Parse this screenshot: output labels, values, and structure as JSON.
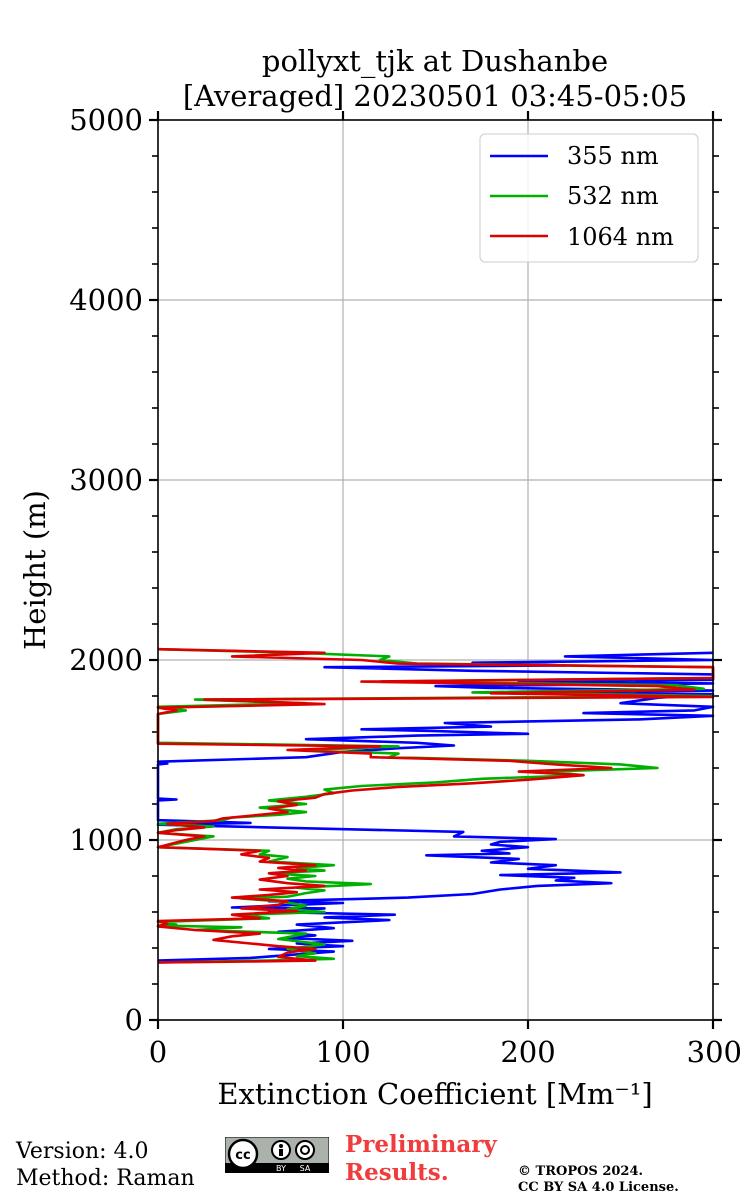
{
  "chart_data": {
    "type": "line",
    "title": [
      "pollyxt_tjk at Dushanbe",
      "[Averaged] 20230501 03:45-05:05"
    ],
    "xlabel": "Extinction Coefficient [Mm⁻¹]",
    "ylabel": "Height (m)",
    "xlim": [
      0,
      300
    ],
    "ylim": [
      0,
      5000
    ],
    "xticks": [
      0,
      100,
      200,
      300
    ],
    "yticks": [
      0,
      1000,
      2000,
      3000,
      4000,
      5000
    ],
    "grid": true,
    "legend_position": "top-right",
    "series": [
      {
        "name": "355 nm",
        "color": "#0000ff",
        "points": [
          [
            0,
            330
          ],
          [
            50,
            345
          ],
          [
            95,
            380
          ],
          [
            60,
            395
          ],
          [
            100,
            410
          ],
          [
            75,
            425
          ],
          [
            105,
            440
          ],
          [
            70,
            455
          ],
          [
            85,
            470
          ],
          [
            65,
            490
          ],
          [
            95,
            510
          ],
          [
            75,
            530
          ],
          [
            125,
            555
          ],
          [
            90,
            570
          ],
          [
            128,
            585
          ],
          [
            60,
            600
          ],
          [
            90,
            620
          ],
          [
            40,
            625
          ],
          [
            75,
            640
          ],
          [
            100,
            650
          ],
          [
            60,
            660
          ],
          [
            135,
            680
          ],
          [
            170,
            700
          ],
          [
            185,
            725
          ],
          [
            205,
            745
          ],
          [
            245,
            760
          ],
          [
            215,
            775
          ],
          [
            225,
            790
          ],
          [
            185,
            805
          ],
          [
            250,
            820
          ],
          [
            200,
            840
          ],
          [
            215,
            860
          ],
          [
            180,
            875
          ],
          [
            195,
            895
          ],
          [
            145,
            915
          ],
          [
            190,
            925
          ],
          [
            175,
            940
          ],
          [
            200,
            960
          ],
          [
            180,
            975
          ],
          [
            185,
            990
          ],
          [
            215,
            1005
          ],
          [
            160,
            1020
          ],
          [
            165,
            1045
          ],
          [
            60,
            1070
          ],
          [
            0,
            1085
          ],
          [
            50,
            1095
          ],
          [
            0,
            1110
          ],
          [
            0,
            1220
          ],
          [
            10,
            1225
          ],
          [
            0,
            1230
          ],
          [
            0,
            1420
          ],
          [
            5,
            1425
          ],
          [
            0,
            1435
          ],
          [
            80,
            1460
          ],
          [
            100,
            1490
          ],
          [
            130,
            1510
          ],
          [
            160,
            1525
          ],
          [
            140,
            1540
          ],
          [
            80,
            1560
          ],
          [
            140,
            1580
          ],
          [
            200,
            1590
          ],
          [
            150,
            1605
          ],
          [
            110,
            1615
          ],
          [
            180,
            1630
          ],
          [
            155,
            1650
          ],
          [
            260,
            1670
          ],
          [
            300,
            1690
          ],
          [
            230,
            1705
          ],
          [
            290,
            1720
          ],
          [
            300,
            1740
          ],
          [
            250,
            1760
          ],
          [
            270,
            1790
          ],
          [
            300,
            1810
          ],
          [
            200,
            1820
          ],
          [
            300,
            1830
          ],
          [
            180,
            1845
          ],
          [
            150,
            1855
          ],
          [
            300,
            1870
          ],
          [
            195,
            1880
          ],
          [
            300,
            1890
          ],
          [
            300,
            1920
          ],
          [
            170,
            1940
          ],
          [
            90,
            1960
          ],
          [
            220,
            1970
          ],
          [
            170,
            1985
          ],
          [
            300,
            2000
          ],
          [
            220,
            2020
          ],
          [
            300,
            2040
          ]
        ]
      },
      {
        "name": "532 nm",
        "color": "#00b000",
        "points": [
          [
            0,
            320
          ],
          [
            60,
            330
          ],
          [
            95,
            340
          ],
          [
            75,
            355
          ],
          [
            85,
            370
          ],
          [
            70,
            395
          ],
          [
            90,
            420
          ],
          [
            65,
            450
          ],
          [
            80,
            480
          ],
          [
            20,
            500
          ],
          [
            45,
            515
          ],
          [
            0,
            525
          ],
          [
            10,
            530
          ],
          [
            0,
            545
          ],
          [
            60,
            565
          ],
          [
            45,
            585
          ],
          [
            90,
            600
          ],
          [
            70,
            615
          ],
          [
            80,
            635
          ],
          [
            65,
            660
          ],
          [
            45,
            675
          ],
          [
            70,
            685
          ],
          [
            80,
            705
          ],
          [
            90,
            720
          ],
          [
            75,
            735
          ],
          [
            115,
            755
          ],
          [
            80,
            770
          ],
          [
            70,
            785
          ],
          [
            85,
            800
          ],
          [
            60,
            815
          ],
          [
            90,
            830
          ],
          [
            75,
            845
          ],
          [
            95,
            860
          ],
          [
            60,
            880
          ],
          [
            70,
            905
          ],
          [
            55,
            920
          ],
          [
            60,
            940
          ],
          [
            0,
            960
          ],
          [
            20,
            1000
          ],
          [
            30,
            1020
          ],
          [
            0,
            1040
          ],
          [
            10,
            1060
          ],
          [
            30,
            1075
          ],
          [
            0,
            1090
          ],
          [
            35,
            1110
          ],
          [
            40,
            1125
          ],
          [
            65,
            1140
          ],
          [
            80,
            1155
          ],
          [
            55,
            1180
          ],
          [
            80,
            1200
          ],
          [
            60,
            1220
          ],
          [
            80,
            1240
          ],
          [
            95,
            1260
          ],
          [
            90,
            1280
          ],
          [
            110,
            1300
          ],
          [
            150,
            1320
          ],
          [
            175,
            1340
          ],
          [
            230,
            1360
          ],
          [
            210,
            1380
          ],
          [
            270,
            1400
          ],
          [
            250,
            1420
          ],
          [
            200,
            1440
          ],
          [
            125,
            1460
          ],
          [
            130,
            1480
          ],
          [
            80,
            1500
          ],
          [
            130,
            1520
          ],
          [
            0,
            1540
          ],
          [
            0,
            1700
          ],
          [
            15,
            1720
          ],
          [
            0,
            1740
          ],
          [
            80,
            1760
          ],
          [
            20,
            1780
          ],
          [
            300,
            1800
          ],
          [
            170,
            1820
          ],
          [
            295,
            1840
          ],
          [
            280,
            1860
          ],
          [
            120,
            1880
          ],
          [
            300,
            1900
          ],
          [
            300,
            1940
          ],
          [
            300,
            1960
          ],
          [
            140,
            1980
          ],
          [
            120,
            2000
          ],
          [
            125,
            2020
          ],
          [
            75,
            2040
          ],
          [
            0,
            2060
          ]
        ]
      },
      {
        "name": "1064 nm",
        "color": "#dd0000",
        "points": [
          [
            0,
            320
          ],
          [
            50,
            325
          ],
          [
            85,
            330
          ],
          [
            65,
            350
          ],
          [
            70,
            375
          ],
          [
            85,
            395
          ],
          [
            65,
            410
          ],
          [
            50,
            425
          ],
          [
            30,
            445
          ],
          [
            40,
            465
          ],
          [
            55,
            480
          ],
          [
            20,
            500
          ],
          [
            0,
            520
          ],
          [
            5,
            535
          ],
          [
            0,
            550
          ],
          [
            55,
            565
          ],
          [
            40,
            585
          ],
          [
            75,
            605
          ],
          [
            45,
            620
          ],
          [
            65,
            640
          ],
          [
            70,
            660
          ],
          [
            40,
            680
          ],
          [
            60,
            695
          ],
          [
            75,
            710
          ],
          [
            55,
            725
          ],
          [
            90,
            745
          ],
          [
            70,
            760
          ],
          [
            55,
            780
          ],
          [
            70,
            800
          ],
          [
            60,
            815
          ],
          [
            80,
            830
          ],
          [
            65,
            845
          ],
          [
            85,
            860
          ],
          [
            55,
            880
          ],
          [
            60,
            900
          ],
          [
            45,
            920
          ],
          [
            55,
            940
          ],
          [
            0,
            960
          ],
          [
            15,
            1000
          ],
          [
            25,
            1020
          ],
          [
            0,
            1040
          ],
          [
            10,
            1055
          ],
          [
            25,
            1070
          ],
          [
            5,
            1090
          ],
          [
            30,
            1105
          ],
          [
            35,
            1120
          ],
          [
            55,
            1140
          ],
          [
            70,
            1155
          ],
          [
            60,
            1175
          ],
          [
            75,
            1195
          ],
          [
            65,
            1215
          ],
          [
            85,
            1235
          ],
          [
            90,
            1255
          ],
          [
            105,
            1275
          ],
          [
            130,
            1295
          ],
          [
            170,
            1315
          ],
          [
            200,
            1335
          ],
          [
            230,
            1360
          ],
          [
            195,
            1380
          ],
          [
            245,
            1400
          ],
          [
            215,
            1420
          ],
          [
            190,
            1440
          ],
          [
            115,
            1460
          ],
          [
            115,
            1480
          ],
          [
            70,
            1500
          ],
          [
            120,
            1520
          ],
          [
            0,
            1535
          ],
          [
            0,
            1700
          ],
          [
            10,
            1720
          ],
          [
            0,
            1735
          ],
          [
            90,
            1755
          ],
          [
            25,
            1780
          ],
          [
            300,
            1795
          ],
          [
            180,
            1815
          ],
          [
            290,
            1835
          ],
          [
            270,
            1855
          ],
          [
            110,
            1880
          ],
          [
            300,
            1900
          ],
          [
            300,
            1930
          ],
          [
            300,
            1960
          ],
          [
            130,
            1980
          ],
          [
            110,
            2000
          ],
          [
            40,
            2020
          ],
          [
            90,
            2040
          ],
          [
            0,
            2060
          ]
        ]
      }
    ]
  },
  "footer": {
    "version": "Version: 4.0",
    "method": "Method: Raman",
    "preliminary": [
      "Preliminary",
      "Results."
    ],
    "copyright": [
      "© TROPOS 2024.",
      "CC BY SA 4.0 License."
    ],
    "license_badge": [
      "cc",
      "BY",
      "SA"
    ]
  }
}
